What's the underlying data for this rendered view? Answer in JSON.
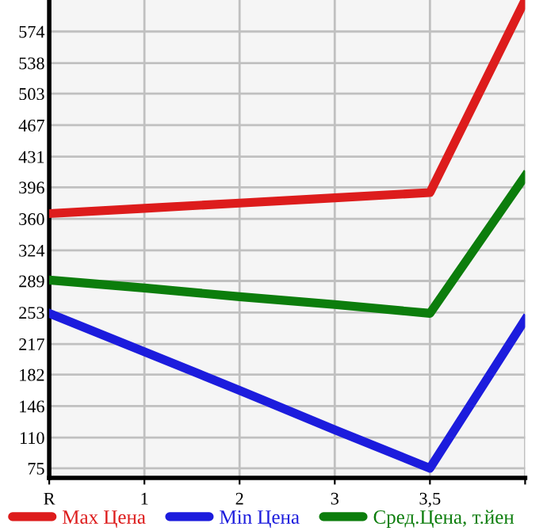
{
  "chart_data": {
    "type": "line",
    "categories": [
      "R",
      "1",
      "2",
      "3",
      "3,5",
      null
    ],
    "series": [
      {
        "name": "Max Цена",
        "color": "#dd1c1c",
        "values": [
          366,
          372,
          378,
          384,
          390,
          610
        ]
      },
      {
        "name": "Min Цена",
        "color": "#1c1cdd",
        "values": [
          252,
          208,
          164,
          119,
          75,
          245
        ]
      },
      {
        "name": "Сред.Цена, т.йен",
        "color": "#0c7d0c",
        "values": [
          290,
          281,
          271,
          262,
          252,
          409
        ]
      }
    ],
    "ylim": [
      64,
      610
    ],
    "yticks": [
      75,
      110,
      146,
      182,
      217,
      253,
      289,
      324,
      360,
      396,
      431,
      467,
      503,
      538,
      574
    ],
    "grid": true,
    "legend": "bottom",
    "marker": "none",
    "line_style": "solid"
  }
}
